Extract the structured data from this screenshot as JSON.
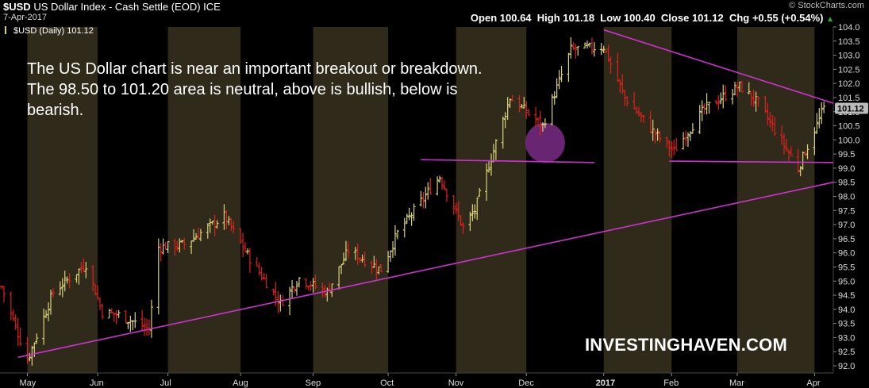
{
  "header": {
    "symbol": "$USD",
    "name": "US Dollar Index - Cash Settle (EOD)",
    "exchange": "ICE",
    "date": "7-Apr-2017",
    "brand": "© StockCharts.com",
    "open_label": "Open",
    "open": "100.64",
    "high_label": "High",
    "high": "101.18",
    "low_label": "Low",
    "low": "100.40",
    "close_label": "Close",
    "close": "101.12",
    "chg_label": "Chg",
    "chg": "+0.55 (+0.54%)",
    "legend": "$USD (Daily) 101.12"
  },
  "annotation": "The US Dollar chart is near an important breakout or breakdown. The 98.50 to 101.20 area is neutral, above is bullish, below is bearish.",
  "watermark": "INVESTINGHAVEN.COM",
  "colors": {
    "up": "#d9d27a",
    "down": "#e0201c",
    "trendline": "#cc33cc",
    "band": "#2f2a1a",
    "circle": "#7a2c86"
  },
  "chart_data": {
    "type": "ohlc",
    "y_axis": {
      "min": 92.0,
      "max": 104.0,
      "step": 0.5,
      "side": "right"
    },
    "y_ticks": [
      "104.0",
      "103.5",
      "103.0",
      "102.5",
      "102.0",
      "101.5",
      "101.0",
      "100.5",
      "100.0",
      "99.5",
      "99.0",
      "98.5",
      "98.0",
      "97.5",
      "97.0",
      "96.5",
      "96.0",
      "95.5",
      "95.0",
      "94.5",
      "94.0",
      "93.5",
      "93.0",
      "92.5",
      "92.0"
    ],
    "last_price_label": "101.12",
    "x_axis": {
      "labels": [
        {
          "text": "May",
          "date": "2016-05-02"
        },
        {
          "text": "Jun",
          "date": "2016-06-01"
        },
        {
          "text": "Jul",
          "date": "2016-07-01"
        },
        {
          "text": "Aug",
          "date": "2016-08-01"
        },
        {
          "text": "Sep",
          "date": "2016-09-01"
        },
        {
          "text": "Oct",
          "date": "2016-10-03"
        },
        {
          "text": "Nov",
          "date": "2016-11-01"
        },
        {
          "text": "Dec",
          "date": "2016-12-01"
        },
        {
          "text": "2017",
          "date": "2017-01-03",
          "bold": true
        },
        {
          "text": "Feb",
          "date": "2017-02-01"
        },
        {
          "text": "Mar",
          "date": "2017-03-01"
        },
        {
          "text": "Apr",
          "date": "2017-04-03"
        }
      ],
      "start": "2016-04-21",
      "end": "2017-04-11"
    },
    "month_bands": [
      [
        "2016-05-02",
        "2016-06-01"
      ],
      [
        "2016-07-01",
        "2016-08-01"
      ],
      [
        "2016-09-01",
        "2016-10-03"
      ],
      [
        "2016-11-01",
        "2016-12-01"
      ],
      [
        "2017-01-03",
        "2017-02-01"
      ],
      [
        "2017-03-01",
        "2017-04-03"
      ]
    ],
    "anchors": [
      [
        "2016-04-21",
        94.8
      ],
      [
        "2016-05-02",
        92.2
      ],
      [
        "2016-05-13",
        94.6
      ],
      [
        "2016-05-27",
        95.6
      ],
      [
        "2016-06-03",
        93.9
      ],
      [
        "2016-06-10",
        93.8
      ],
      [
        "2016-06-23",
        93.3
      ],
      [
        "2016-06-27",
        96.2
      ],
      [
        "2016-07-08",
        96.3
      ],
      [
        "2016-07-25",
        97.3
      ],
      [
        "2016-08-05",
        95.8
      ],
      [
        "2016-08-18",
        94.2
      ],
      [
        "2016-08-26",
        95.1
      ],
      [
        "2016-09-07",
        94.6
      ],
      [
        "2016-09-16",
        96.1
      ],
      [
        "2016-09-30",
        95.4
      ],
      [
        "2016-10-07",
        96.7
      ],
      [
        "2016-10-25",
        98.7
      ],
      [
        "2016-11-04",
        96.9
      ],
      [
        "2016-11-09",
        97.5
      ],
      [
        "2016-11-24",
        101.5
      ],
      [
        "2016-12-08",
        100.5
      ],
      [
        "2016-12-20",
        103.2
      ],
      [
        "2017-01-03",
        103.3
      ],
      [
        "2017-01-12",
        101.5
      ],
      [
        "2017-01-24",
        100.3
      ],
      [
        "2017-02-02",
        99.6
      ],
      [
        "2017-02-15",
        101.1
      ],
      [
        "2017-03-02",
        101.9
      ],
      [
        "2017-03-10",
        101.3
      ],
      [
        "2017-03-27",
        99.0
      ],
      [
        "2017-04-07",
        101.12
      ]
    ],
    "trendlines": [
      {
        "name": "rising-support",
        "from": [
          "2016-04-28",
          92.3
        ],
        "to": [
          "2017-04-11",
          98.5
        ]
      },
      {
        "name": "falling-resistance",
        "from": [
          "2017-01-03",
          103.9
        ],
        "to": [
          "2017-04-11",
          101.3
        ]
      },
      {
        "name": "neckline-dec",
        "from": [
          "2016-10-17",
          99.3
        ],
        "to": [
          "2016-12-30",
          99.2
        ]
      },
      {
        "name": "neckline-feb",
        "from": [
          "2017-01-31",
          99.25
        ],
        "to": [
          "2017-04-11",
          99.2
        ]
      }
    ],
    "highlight_circle": {
      "date": "2016-12-09",
      "price": 99.9
    }
  }
}
